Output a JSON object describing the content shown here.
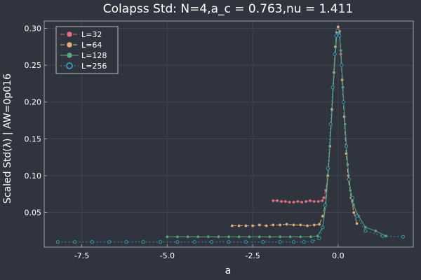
{
  "chart_data": {
    "type": "line",
    "title": "Colapss Std: N=4,a_c = 0.763,nu = 1.411",
    "xlabel": "a",
    "ylabel": "Scaled Std(λ) | AW=0p016",
    "xlim": [
      -8.6,
      2.2
    ],
    "ylim": [
      0.003,
      0.31
    ],
    "x_ticks": [
      -7.5,
      -5.0,
      -2.5,
      0.0
    ],
    "x_tick_labels": [
      "-7.5",
      "-5.0",
      "-2.5",
      "0.0"
    ],
    "y_ticks": [
      0.05,
      0.1,
      0.15,
      0.2,
      0.25,
      0.3
    ],
    "y_tick_labels": [
      "0.05",
      "0.10",
      "0.15",
      "0.20",
      "0.25",
      "0.30"
    ],
    "grid": true,
    "legend_position": "top-left",
    "series": [
      {
        "name": "L=32",
        "color": "#e26f85",
        "dash": "6,3",
        "marker": "filled",
        "points": [
          [
            -1.9,
            0.066
          ],
          [
            -1.78,
            0.066
          ],
          [
            -1.66,
            0.065
          ],
          [
            -1.54,
            0.065
          ],
          [
            -1.42,
            0.064
          ],
          [
            -1.3,
            0.064
          ],
          [
            -1.18,
            0.065
          ],
          [
            -1.06,
            0.064
          ],
          [
            -0.94,
            0.065
          ],
          [
            -0.82,
            0.066
          ],
          [
            -0.7,
            0.065
          ],
          [
            -0.58,
            0.065
          ],
          [
            -0.46,
            0.066
          ],
          [
            -0.42,
            0.07
          ],
          [
            -0.36,
            0.08
          ],
          [
            -0.3,
            0.1
          ],
          [
            -0.24,
            0.14
          ],
          [
            -0.18,
            0.19
          ],
          [
            -0.12,
            0.24
          ],
          [
            -0.08,
            0.275
          ],
          [
            -0.04,
            0.295
          ],
          [
            0.0,
            0.301
          ],
          [
            0.04,
            0.295
          ],
          [
            0.08,
            0.265
          ],
          [
            0.12,
            0.23
          ],
          [
            0.18,
            0.18
          ],
          [
            0.24,
            0.13
          ],
          [
            0.3,
            0.1
          ],
          [
            0.36,
            0.08
          ],
          [
            0.42,
            0.066
          ]
        ]
      },
      {
        "name": "L=64",
        "color": "#e0b07c",
        "dash": "6,3",
        "marker": "filled",
        "points": [
          [
            -3.1,
            0.032
          ],
          [
            -2.9,
            0.032
          ],
          [
            -2.7,
            0.032
          ],
          [
            -2.5,
            0.032
          ],
          [
            -2.3,
            0.033
          ],
          [
            -2.1,
            0.032
          ],
          [
            -1.9,
            0.033
          ],
          [
            -1.7,
            0.033
          ],
          [
            -1.5,
            0.034
          ],
          [
            -1.3,
            0.033
          ],
          [
            -1.1,
            0.033
          ],
          [
            -0.9,
            0.032
          ],
          [
            -0.7,
            0.033
          ],
          [
            -0.55,
            0.034
          ],
          [
            -0.45,
            0.045
          ],
          [
            -0.38,
            0.06
          ],
          [
            -0.3,
            0.1
          ],
          [
            -0.24,
            0.14
          ],
          [
            -0.18,
            0.19
          ],
          [
            -0.12,
            0.24
          ],
          [
            -0.08,
            0.275
          ],
          [
            -0.04,
            0.295
          ],
          [
            0.0,
            0.302
          ],
          [
            0.04,
            0.296
          ],
          [
            0.08,
            0.27
          ],
          [
            0.12,
            0.23
          ],
          [
            0.18,
            0.18
          ],
          [
            0.24,
            0.13
          ],
          [
            0.3,
            0.095
          ],
          [
            0.38,
            0.07
          ],
          [
            0.46,
            0.05
          ],
          [
            0.55,
            0.035
          ]
        ]
      },
      {
        "name": "L=128",
        "color": "#5aa583",
        "dash": "",
        "marker": "filled",
        "points": [
          [
            -5.0,
            0.017
          ],
          [
            -4.7,
            0.017
          ],
          [
            -4.4,
            0.017
          ],
          [
            -4.1,
            0.017
          ],
          [
            -3.8,
            0.017
          ],
          [
            -3.5,
            0.017
          ],
          [
            -3.2,
            0.017
          ],
          [
            -2.9,
            0.017
          ],
          [
            -2.6,
            0.017
          ],
          [
            -2.3,
            0.017
          ],
          [
            -2.0,
            0.017
          ],
          [
            -1.7,
            0.017
          ],
          [
            -1.4,
            0.017
          ],
          [
            -1.1,
            0.017
          ],
          [
            -0.8,
            0.017
          ],
          [
            -0.6,
            0.018
          ],
          [
            -0.45,
            0.03
          ],
          [
            -0.36,
            0.06
          ],
          [
            -0.28,
            0.11
          ],
          [
            -0.2,
            0.17
          ],
          [
            -0.14,
            0.22
          ],
          [
            -0.08,
            0.265
          ],
          [
            -0.04,
            0.29
          ],
          [
            0.0,
            0.298
          ],
          [
            0.04,
            0.292
          ],
          [
            0.08,
            0.27
          ],
          [
            0.14,
            0.22
          ],
          [
            0.2,
            0.17
          ],
          [
            0.28,
            0.115
          ],
          [
            0.36,
            0.08
          ],
          [
            0.45,
            0.06
          ],
          [
            0.6,
            0.045
          ],
          [
            0.8,
            0.03
          ],
          [
            1.1,
            0.025
          ],
          [
            1.4,
            0.018
          ]
        ]
      },
      {
        "name": "L=256",
        "color": "#3a93aa",
        "dash": "2,3",
        "marker": "hollow",
        "points": [
          [
            -8.2,
            0.01
          ],
          [
            -7.7,
            0.01
          ],
          [
            -7.2,
            0.01
          ],
          [
            -6.7,
            0.01
          ],
          [
            -6.2,
            0.01
          ],
          [
            -5.7,
            0.01
          ],
          [
            -5.2,
            0.01
          ],
          [
            -4.7,
            0.01
          ],
          [
            -4.2,
            0.01
          ],
          [
            -3.7,
            0.01
          ],
          [
            -3.2,
            0.01
          ],
          [
            -2.7,
            0.01
          ],
          [
            -2.2,
            0.01
          ],
          [
            -1.7,
            0.01
          ],
          [
            -1.3,
            0.01
          ],
          [
            -1.0,
            0.01
          ],
          [
            -0.75,
            0.011
          ],
          [
            -0.55,
            0.015
          ],
          [
            -0.45,
            0.03
          ],
          [
            -0.38,
            0.06
          ],
          [
            -0.3,
            0.11
          ],
          [
            -0.22,
            0.17
          ],
          [
            -0.16,
            0.22
          ],
          [
            -0.1,
            0.265
          ],
          [
            -0.06,
            0.29
          ],
          [
            -0.02,
            0.297
          ],
          [
            0.04,
            0.29
          ],
          [
            0.1,
            0.25
          ],
          [
            0.16,
            0.2
          ],
          [
            0.24,
            0.14
          ],
          [
            0.32,
            0.095
          ],
          [
            0.42,
            0.07
          ],
          [
            0.55,
            0.045
          ],
          [
            0.8,
            0.025
          ],
          [
            1.3,
            0.018
          ],
          [
            1.9,
            0.017
          ]
        ]
      }
    ]
  }
}
